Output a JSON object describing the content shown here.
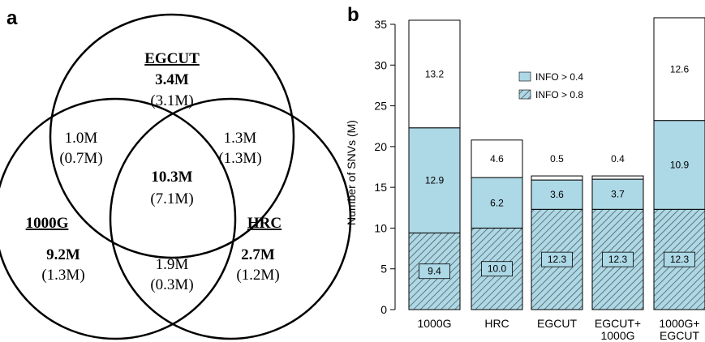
{
  "panel_a": {
    "letter": "a",
    "sets": [
      {
        "name": "EGCUT",
        "unique_bold": "3.4M",
        "unique_paren": "(3.1M)"
      },
      {
        "name": "1000G",
        "unique_bold": "9.2M",
        "unique_paren": "(1.3M)"
      },
      {
        "name": "HRC",
        "unique_bold": "2.7M",
        "unique_paren": "(1.2M)"
      }
    ],
    "overlaps": {
      "egcut_1000g": {
        "main": "1.0M",
        "paren": "(0.7M)"
      },
      "egcut_hrc": {
        "main": "1.3M",
        "paren": "(1.3M)"
      },
      "g1000_hrc": {
        "main": "1.9M",
        "paren": "(0.3M)"
      },
      "all_three": {
        "main": "10.3M",
        "paren": "(7.1M)"
      }
    }
  },
  "panel_b": {
    "letter": "b"
  },
  "colors": {
    "info04": "#add8e6",
    "info08_hatch": "#4a4a4a",
    "bar_stroke": "#000000"
  },
  "chart_data": {
    "type": "bar",
    "stacked": true,
    "categories": [
      [
        "1000G"
      ],
      [
        "HRC"
      ],
      [
        "EGCUT"
      ],
      [
        "EGCUT+",
        "1000G"
      ],
      [
        "1000G+",
        "EGCUT"
      ]
    ],
    "ylabel": "Number of SNVs (M)",
    "ylim": [
      0,
      35
    ],
    "yticks": [
      0,
      5,
      10,
      15,
      20,
      25,
      30,
      35
    ],
    "legend": {
      "placement": "top-center",
      "entries": [
        "INFO > 0.4",
        "INFO > 0.8"
      ]
    },
    "series": [
      {
        "name": "INFO > 0.8",
        "values": [
          9.4,
          10.0,
          12.3,
          12.3,
          12.3
        ],
        "labels": [
          "9.4",
          "10.0",
          "12.3",
          "12.3",
          "12.3"
        ]
      },
      {
        "name": "INFO > 0.4",
        "values": [
          12.9,
          6.2,
          3.6,
          3.7,
          10.9
        ],
        "labels": [
          "12.9",
          "6.2",
          "3.6",
          "3.7",
          "10.9"
        ]
      },
      {
        "values": [
          13.2,
          4.6,
          0.5,
          0.4,
          12.6
        ],
        "labels": [
          "13.2",
          "4.6",
          "0.5",
          "0.4",
          "12.6"
        ]
      }
    ]
  }
}
